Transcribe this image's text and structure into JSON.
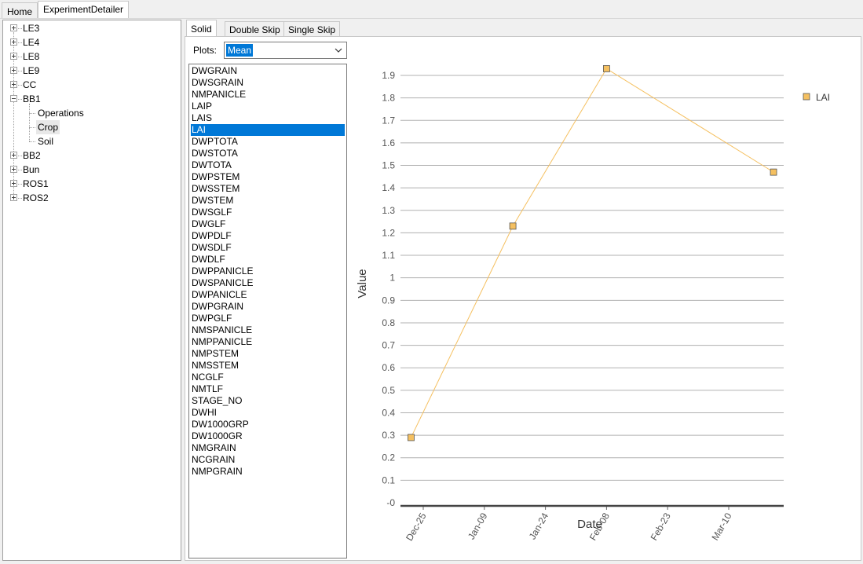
{
  "top_tabs": [
    {
      "label": "Home",
      "active": false
    },
    {
      "label": "ExperimentDetailer",
      "active": true
    }
  ],
  "tree": {
    "nodes": [
      {
        "label": "LE3",
        "expanded": false
      },
      {
        "label": "LE4",
        "expanded": false
      },
      {
        "label": "LE8",
        "expanded": false
      },
      {
        "label": "LE9",
        "expanded": false
      },
      {
        "label": "CC",
        "expanded": false
      },
      {
        "label": "BB1",
        "expanded": true,
        "children": [
          "Operations",
          "Crop",
          "Soil"
        ],
        "selected_child": "Crop"
      },
      {
        "label": "BB2",
        "expanded": false
      },
      {
        "label": "Bun",
        "expanded": false
      },
      {
        "label": "ROS1",
        "expanded": false
      },
      {
        "label": "ROS2",
        "expanded": false
      }
    ]
  },
  "detail_tabs": [
    {
      "label": "Solid",
      "active": true
    },
    {
      "label": "Double Skip",
      "active": false
    },
    {
      "label": "Single Skip",
      "active": false
    }
  ],
  "plots": {
    "label": "Plots:",
    "selected": "Mean"
  },
  "variables": {
    "selected": "LAI",
    "items": [
      "DWGRAIN",
      "DWSGRAIN",
      "NMPANICLE",
      "LAIP",
      "LAIS",
      "LAI",
      "DWPTOTA",
      "DWSTOTA",
      "DWTOTA",
      "DWPSTEM",
      "DWSSTEM",
      "DWSTEM",
      "DWSGLF",
      "DWGLF",
      "DWPDLF",
      "DWSDLF",
      "DWDLF",
      "DWPPANICLE",
      "DWSPANICLE",
      "DWPANICLE",
      "DWPGRAIN",
      "DWPGLF",
      "NMSPANICLE",
      "NMPPANICLE",
      "NMPSTEM",
      "NMSSTEM",
      "NCGLF",
      "NMTLF",
      "STAGE_NO",
      "DWHI",
      "DW1000GRP",
      "DW1000GR",
      "NMGRAIN",
      "NCGRAIN",
      "NMPGRAIN"
    ]
  },
  "chart_data": {
    "type": "line",
    "xlabel": "Date",
    "ylabel": "Value",
    "x_tick_labels": [
      "Dec-25",
      "Jan-09",
      "Jan-24",
      "Feb-08",
      "Feb-23",
      "Mar-10"
    ],
    "y_tick_labels": [
      "-0",
      "0.1",
      "0.2",
      "0.3",
      "0.4",
      "0.5",
      "0.6",
      "0.7",
      "0.8",
      "0.9",
      "1",
      "1.1",
      "1.2",
      "1.3",
      "1.4",
      "1.5",
      "1.6",
      "1.7",
      "1.8",
      "1.9"
    ],
    "ylim": [
      0,
      1.9
    ],
    "grid": true,
    "legend_position": "top-right",
    "series": [
      {
        "name": "LAI",
        "color": "#f5c060",
        "marker_color": "#f5c060",
        "x": [
          "Dec-22",
          "Jan-16",
          "Feb-08",
          "Mar-21"
        ],
        "y": [
          0.29,
          1.23,
          1.93,
          1.47
        ]
      }
    ]
  }
}
